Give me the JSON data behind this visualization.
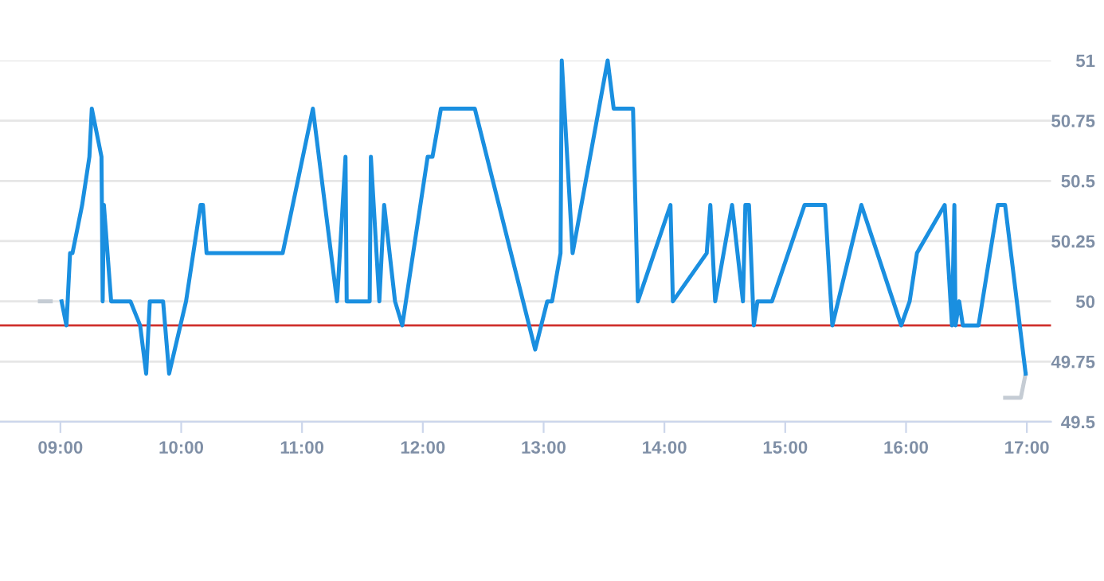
{
  "chart_data": {
    "type": "line",
    "xlim": [
      8.5,
      17.2
    ],
    "ylim": [
      49.5,
      51
    ],
    "xticks": [
      {
        "value": 9,
        "label": "09:00"
      },
      {
        "value": 10,
        "label": "10:00"
      },
      {
        "value": 11,
        "label": "11:00"
      },
      {
        "value": 12,
        "label": "12:00"
      },
      {
        "value": 13,
        "label": "13:00"
      },
      {
        "value": 14,
        "label": "14:00"
      },
      {
        "value": 15,
        "label": "15:00"
      },
      {
        "value": 16,
        "label": "16:00"
      },
      {
        "value": 17,
        "label": "17:00"
      }
    ],
    "yticks": [
      49.5,
      49.75,
      50,
      50.25,
      50.5,
      50.75,
      51
    ],
    "grid": "y",
    "ref_lines": [
      {
        "axis": "y",
        "value": 49.9,
        "color": "#d0312d"
      }
    ],
    "series": [
      {
        "color": "#c5ccd4",
        "x": [
          8.83,
          8.92
        ],
        "values": [
          50.0,
          50.0
        ]
      },
      {
        "color": "#c5ccd4",
        "x": [
          16.82,
          16.95,
          16.99
        ],
        "values": [
          49.6,
          49.6,
          49.7
        ]
      },
      {
        "color": "#1a8fe0",
        "x": [
          9.01,
          9.05,
          9.08,
          9.1,
          9.18,
          9.24,
          9.26,
          9.34,
          9.35,
          9.36,
          9.42,
          9.58,
          9.66,
          9.71,
          9.74,
          9.85,
          9.9,
          10.04,
          10.16,
          10.18,
          10.21,
          10.84,
          11.09,
          11.29,
          11.36,
          11.37,
          11.56,
          11.57,
          11.64,
          11.68,
          11.77,
          11.83,
          12.04,
          12.08,
          12.15,
          12.43,
          12.93,
          13.03,
          13.07,
          13.14,
          13.15,
          13.24,
          13.53,
          13.58,
          13.74,
          13.78,
          14.05,
          14.07,
          14.35,
          14.38,
          14.42,
          14.56,
          14.65,
          14.67,
          14.7,
          14.74,
          14.77,
          14.89,
          15.16,
          15.33,
          15.39,
          15.63,
          15.96,
          16.03,
          16.09,
          16.32,
          16.38,
          16.4,
          16.41,
          16.44,
          16.47,
          16.6,
          16.76,
          16.82,
          16.99
        ],
        "values": [
          50.0,
          49.9,
          50.2,
          50.2,
          50.4,
          50.6,
          50.8,
          50.6,
          50.0,
          50.4,
          50.0,
          50.0,
          49.9,
          49.7,
          50.0,
          50.0,
          49.7,
          50.0,
          50.4,
          50.4,
          50.2,
          50.2,
          50.8,
          50.0,
          50.6,
          50.0,
          50.0,
          50.6,
          50.0,
          50.4,
          50.0,
          49.9,
          50.6,
          50.6,
          50.8,
          50.8,
          49.8,
          50.0,
          50.0,
          50.2,
          51.0,
          50.2,
          51.0,
          50.8,
          50.8,
          50.0,
          50.4,
          50.0,
          50.2,
          50.4,
          50.0,
          50.4,
          50.0,
          50.4,
          50.4,
          49.9,
          50.0,
          50.0,
          50.4,
          50.4,
          49.9,
          50.4,
          49.9,
          50.0,
          50.2,
          50.4,
          49.9,
          50.4,
          49.9,
          50.0,
          49.9,
          49.9,
          50.4,
          50.4,
          49.7
        ]
      }
    ]
  }
}
